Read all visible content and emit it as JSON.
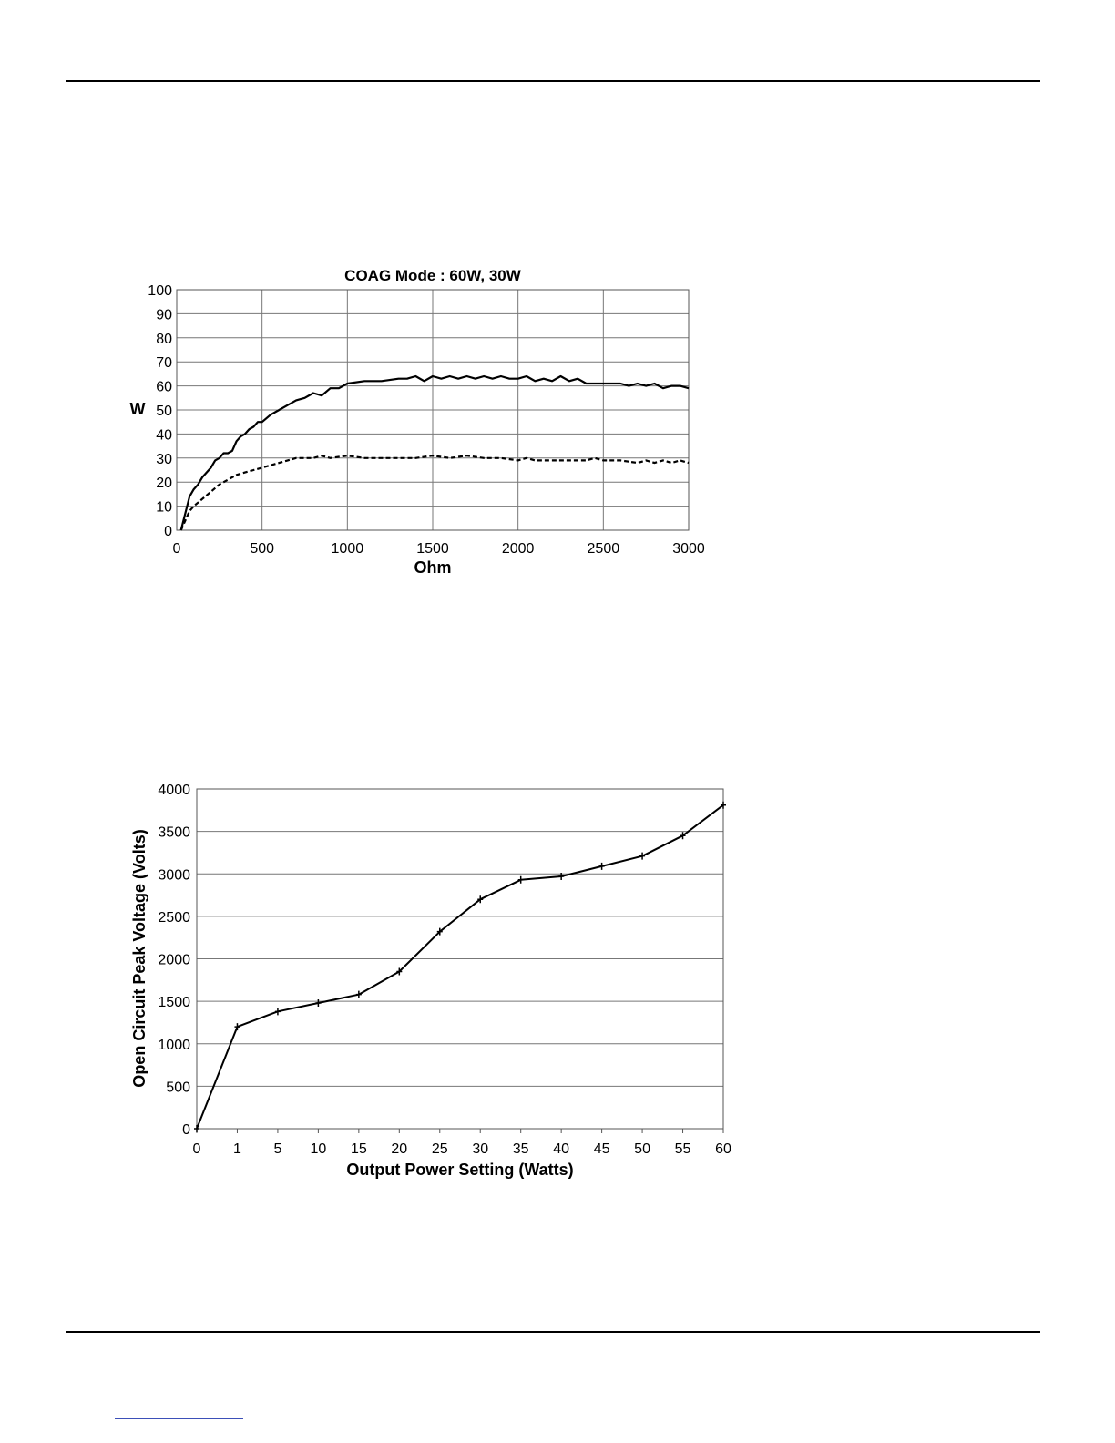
{
  "chart_data": [
    {
      "type": "line",
      "title": "COAG Mode : 60W, 30W",
      "xlabel": "Ohm",
      "ylabel": "W",
      "xlim": [
        0,
        3000
      ],
      "ylim": [
        0,
        100
      ],
      "x_ticks": [
        "0",
        "500",
        "1000",
        "1500",
        "2000",
        "2500",
        "3000"
      ],
      "y_ticks": [
        "0",
        "10",
        "20",
        "30",
        "40",
        "50",
        "60",
        "70",
        "80",
        "90",
        "100"
      ],
      "grid": true,
      "series": [
        {
          "style": "solid",
          "x": [
            25,
            50,
            75,
            100,
            125,
            150,
            175,
            200,
            225,
            250,
            275,
            300,
            325,
            350,
            375,
            400,
            425,
            450,
            475,
            500,
            550,
            600,
            650,
            700,
            750,
            800,
            850,
            900,
            950,
            1000,
            1100,
            1200,
            1300,
            1350,
            1400,
            1450,
            1500,
            1550,
            1600,
            1650,
            1700,
            1750,
            1800,
            1850,
            1900,
            1950,
            2000,
            2050,
            2100,
            2150,
            2200,
            2250,
            2300,
            2350,
            2400,
            2500,
            2600,
            2650,
            2700,
            2750,
            2800,
            2850,
            2900,
            2950,
            3000
          ],
          "y": [
            0,
            7,
            14,
            17,
            19,
            22,
            24,
            26,
            29,
            30,
            32,
            32,
            33,
            37,
            39,
            40,
            42,
            43,
            45,
            45,
            48,
            50,
            52,
            54,
            55,
            57,
            56,
            59,
            59,
            61,
            62,
            62,
            63,
            63,
            64,
            62,
            64,
            63,
            64,
            63,
            64,
            63,
            64,
            63,
            64,
            63,
            63,
            64,
            62,
            63,
            62,
            64,
            62,
            63,
            61,
            61,
            61,
            60,
            61,
            60,
            61,
            59,
            60,
            60,
            59
          ]
        },
        {
          "style": "dashed",
          "x": [
            25,
            50,
            75,
            100,
            150,
            200,
            250,
            300,
            350,
            400,
            450,
            500,
            550,
            600,
            650,
            700,
            800,
            850,
            900,
            1000,
            1100,
            1200,
            1300,
            1400,
            1500,
            1600,
            1700,
            1800,
            1900,
            2000,
            2050,
            2100,
            2200,
            2300,
            2400,
            2450,
            2500,
            2600,
            2700,
            2750,
            2800,
            2850,
            2900,
            2950,
            3000
          ],
          "y": [
            0,
            4,
            8,
            10,
            13,
            16,
            19,
            21,
            23,
            24,
            25,
            26,
            27,
            28,
            29,
            30,
            30,
            31,
            30,
            31,
            30,
            30,
            30,
            30,
            31,
            30,
            31,
            30,
            30,
            29,
            30,
            29,
            29,
            29,
            29,
            30,
            29,
            29,
            28,
            29,
            28,
            29,
            28,
            29,
            28
          ]
        }
      ]
    },
    {
      "type": "line",
      "title": "",
      "xlabel": "Output Power Setting (Watts)",
      "ylabel": "Open Circuit Peak Voltage (Volts)",
      "categories": [
        "0",
        "1",
        "5",
        "10",
        "15",
        "20",
        "25",
        "30",
        "35",
        "40",
        "45",
        "50",
        "55",
        "60"
      ],
      "ylim": [
        0,
        4000
      ],
      "y_ticks": [
        "0",
        "500",
        "1000",
        "1500",
        "2000",
        "2500",
        "3000",
        "3500",
        "4000"
      ],
      "grid": true,
      "series": [
        {
          "values": [
            0,
            1200,
            1380,
            1480,
            1580,
            1850,
            2320,
            2700,
            2930,
            2970,
            3090,
            3210,
            3450,
            3810
          ]
        }
      ]
    }
  ]
}
